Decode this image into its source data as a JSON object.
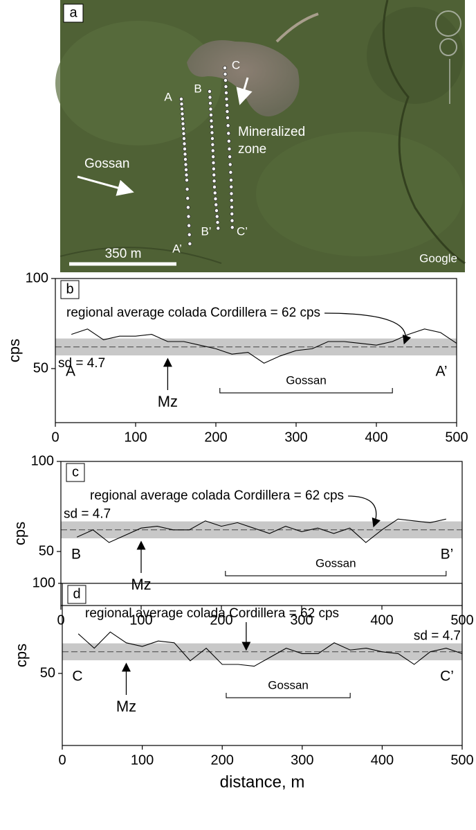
{
  "map_panel": {
    "panel_label": "a",
    "start_labels": [
      "A",
      "B",
      "C"
    ],
    "end_labels": [
      "A’",
      "B’",
      "C’"
    ],
    "zone_label": [
      "Mineralized",
      "zone"
    ],
    "gossan_label": "Gossan",
    "scale_label": "350 m",
    "credit": "Google"
  },
  "chart_data": [
    {
      "type": "line",
      "panel_label": "b",
      "color": "#000000",
      "band_color": "#c8c8c8",
      "x": [
        20,
        40,
        60,
        80,
        100,
        120,
        140,
        160,
        180,
        200,
        220,
        240,
        260,
        280,
        300,
        320,
        340,
        360,
        380,
        400,
        420,
        440,
        460,
        480,
        500
      ],
      "values": [
        69,
        72,
        66,
        68,
        68,
        69,
        65,
        65,
        63,
        61,
        58,
        59,
        53,
        57,
        60,
        61,
        65,
        65,
        64,
        63,
        65,
        69,
        72,
        70,
        64
      ],
      "xlim": [
        0,
        500
      ],
      "xticks": [
        0,
        100,
        200,
        300,
        400,
        500
      ],
      "ylim": [
        20,
        100
      ],
      "yticks": [
        50,
        100
      ],
      "y_label": "cps",
      "start_label": "A",
      "end_label": "A’",
      "mean": 62,
      "sd": 4.7,
      "mean_label": "regional average colada Cordillera = 62 cps",
      "sd_label": "sd = 4.7",
      "mz_label": "Mz",
      "mz_position": 140,
      "gossan_label": "Gossan",
      "gossan_range": [
        205,
        420
      ]
    },
    {
      "type": "line",
      "panel_label": "c",
      "color": "#000000",
      "band_color": "#c8c8c8",
      "x": [
        20,
        40,
        60,
        80,
        100,
        120,
        140,
        160,
        180,
        200,
        220,
        240,
        260,
        280,
        300,
        320,
        340,
        360,
        380,
        400,
        420,
        440,
        460,
        480
      ],
      "values": [
        58,
        62,
        55,
        59,
        63,
        64,
        62,
        62,
        67,
        64,
        66,
        63,
        60,
        64,
        61,
        63,
        60,
        63,
        55,
        62,
        68,
        67,
        66,
        68
      ],
      "xlim": [
        0,
        500
      ],
      "xticks": [
        0,
        100,
        200,
        300,
        400,
        500
      ],
      "ylim": [
        20,
        100
      ],
      "yticks": [
        50,
        100
      ],
      "y_label": "cps",
      "start_label": "B",
      "end_label": "B’",
      "mean": 62,
      "sd": 4.7,
      "mean_label": "regional average colada Cordillera = 62 cps",
      "sd_label": "sd = 4.7",
      "mz_label": "Mz",
      "mz_position": 100,
      "gossan_label": "Gossan",
      "gossan_range": [
        205,
        480
      ]
    },
    {
      "type": "line",
      "panel_label": "d",
      "color": "#000000",
      "band_color": "#c8c8c8",
      "x": [
        20,
        40,
        60,
        80,
        100,
        120,
        140,
        160,
        180,
        200,
        220,
        240,
        260,
        280,
        300,
        320,
        340,
        360,
        380,
        400,
        420,
        440,
        460,
        480,
        500
      ],
      "values": [
        72,
        64,
        73,
        67,
        65,
        68,
        67,
        57,
        64,
        55,
        55,
        54,
        59,
        64,
        61,
        61,
        67,
        63,
        64,
        62,
        61,
        55,
        62,
        64,
        61
      ],
      "xlim": [
        0,
        500
      ],
      "xticks": [
        0,
        100,
        200,
        300,
        400,
        500
      ],
      "ylim": [
        10,
        100
      ],
      "yticks": [
        50,
        100
      ],
      "y_label": "cps",
      "x_label": "distance,  m",
      "start_label": "C",
      "end_label": "C’",
      "mean": 62,
      "sd": 4.7,
      "mean_label": "regional average colada Cordillera = 62 cps",
      "sd_label": "sd = 4.7",
      "mz_label": "Mz",
      "mz_position": 80,
      "gossan_label": "Gossan",
      "gossan_range": [
        205,
        360
      ]
    }
  ]
}
